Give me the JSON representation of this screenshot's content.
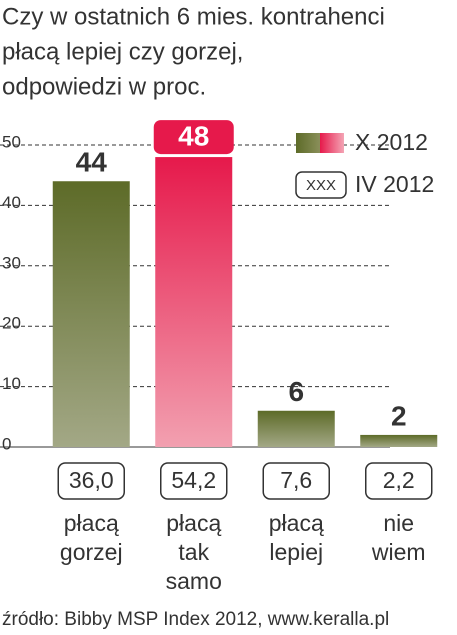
{
  "chart_data": {
    "type": "bar",
    "title_lines": [
      "Czy w ostatnich 6 mies. kontrahenci",
      "płacą lepiej czy gorzej,",
      "odpowiedzi w proc."
    ],
    "categories": [
      "płacą gorzej",
      "płacą tak samo",
      "płacą lepiej",
      "nie wiem"
    ],
    "series": [
      {
        "name": "X 2012",
        "color": "#5d6b28",
        "values": [
          44,
          48,
          6,
          2
        ]
      },
      {
        "name": "IV 2012",
        "color": "#333333",
        "values": [
          36.0,
          54.2,
          7.6,
          2.2
        ],
        "value_labels": [
          "36,0",
          "54,2",
          "7,6",
          "2,2"
        ],
        "legend_sample": "XXX"
      }
    ],
    "highlight": 1,
    "highlight_color": "#e6194b",
    "ylim": [
      0,
      50
    ],
    "yticks": [
      0,
      10,
      20,
      30,
      40,
      50
    ],
    "grid": true,
    "source": "źródło: Bibby MSP Index 2012, www.keralla.pl"
  }
}
